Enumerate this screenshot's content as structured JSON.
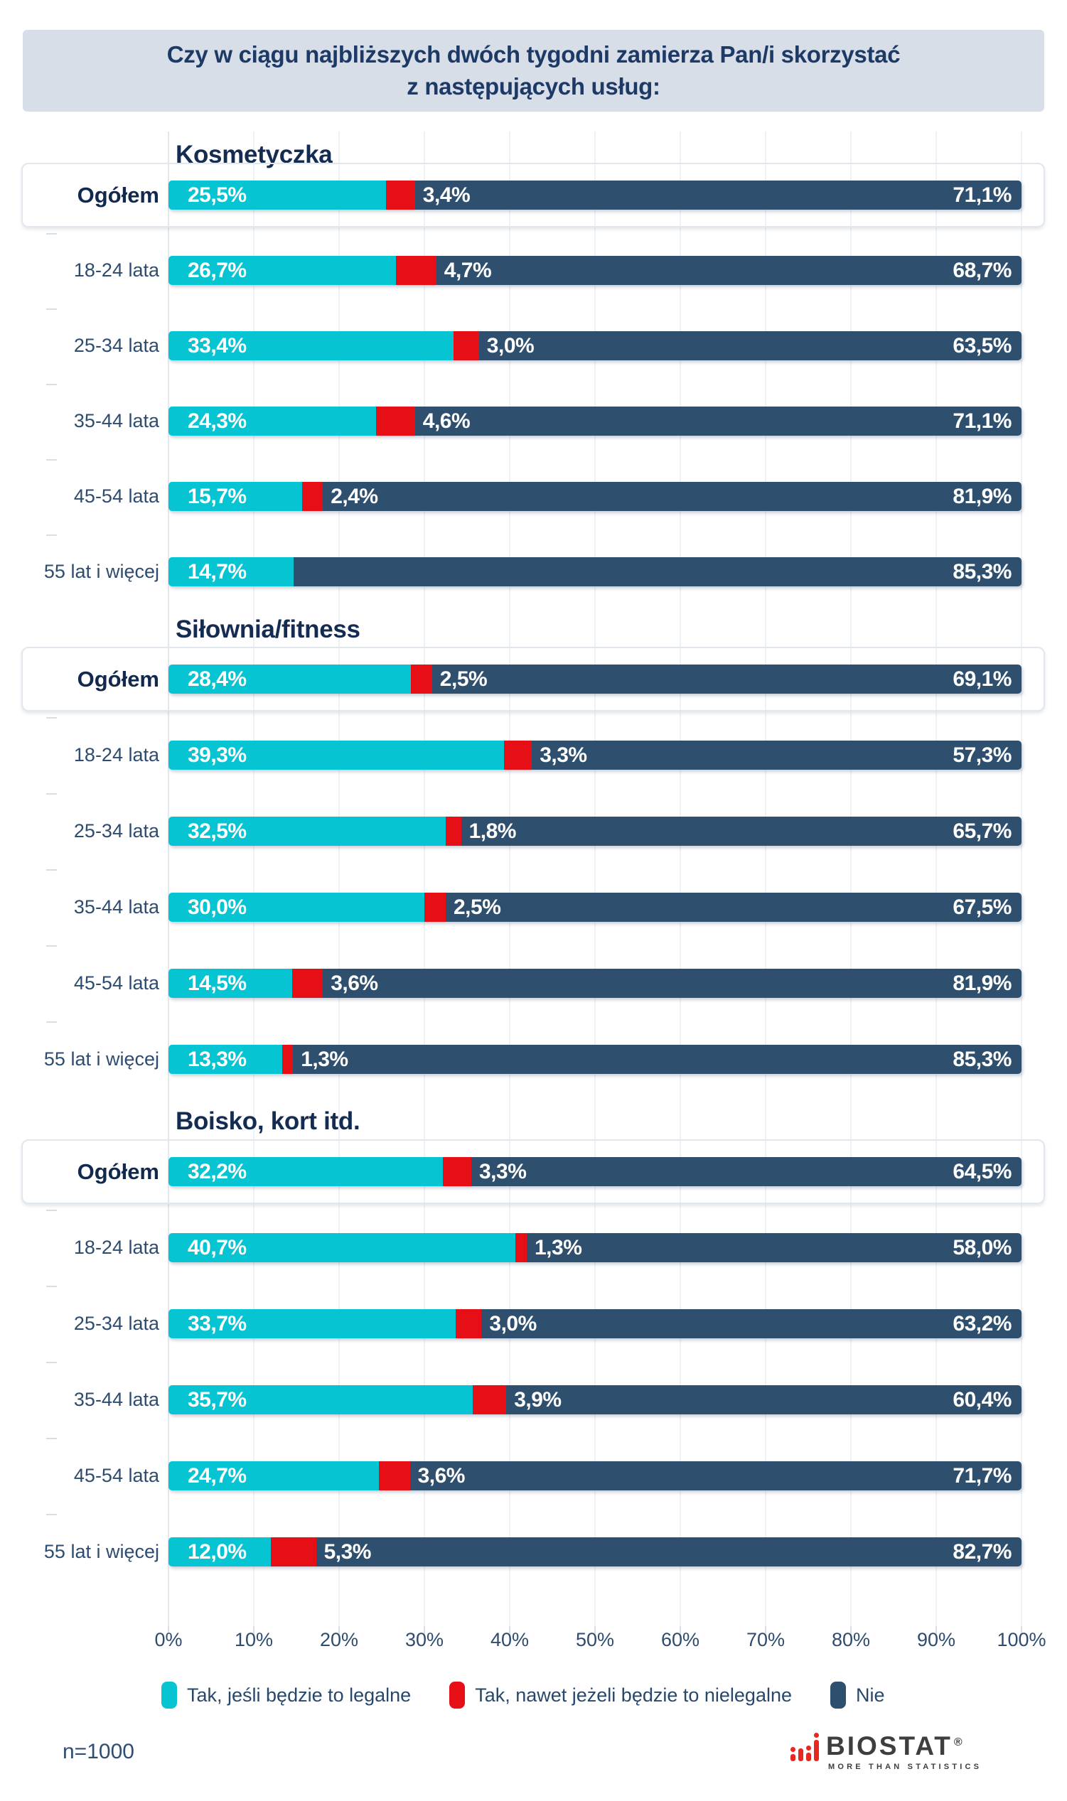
{
  "title": {
    "line1": "Czy w ciągu najbliższych dwóch tygodni zamierza Pan/i skorzystać",
    "line2": "z następujących usług:"
  },
  "colors": {
    "legal": "#07c4d2",
    "illegal": "#e60f16",
    "no": "#2e4f6e",
    "banner_bg": "#d8dee8",
    "text_navy": "#2d4c6f",
    "dark_navy": "#152c52",
    "logo_red": "#e8271e",
    "logo_gray": "#3e3e3e"
  },
  "legend": [
    {
      "key": "legal",
      "label": "Tak, jeśli będzie to legalne"
    },
    {
      "key": "illegal",
      "label": "Tak, nawet jeżeli będzie to nielegalne"
    },
    {
      "key": "no",
      "label": "Nie"
    }
  ],
  "footer": {
    "sample": "n=1000",
    "logo": {
      "name": "BIOSTAT",
      "registered": "®",
      "tagline": "MORE THAN STATISTICS"
    }
  },
  "chart_data": {
    "type": "bar",
    "stacked": true,
    "orientation": "horizontal",
    "unit": "%",
    "xlim": [
      0,
      100
    ],
    "grid": true,
    "x_ticks": [
      "0%",
      "10%",
      "20%",
      "30%",
      "40%",
      "50%",
      "60%",
      "70%",
      "80%",
      "90%",
      "100%"
    ],
    "categories": [
      "Ogółem",
      "18-24 lata",
      "25-34 lata",
      "35-44 lata",
      "45-54 lata",
      "55 lat i więcej"
    ],
    "series_names": [
      "Tak, jeśli będzie to legalne",
      "Tak, nawet jeżeli będzie to nielegalne",
      "Nie"
    ],
    "sections": [
      {
        "title": "Kosmetyczka",
        "rows": [
          {
            "label": "Ogółem",
            "legal": 25.5,
            "illegal": 3.4,
            "no": 71.1,
            "legal_text": "25,5%",
            "illegal_text": "3,4%",
            "no_text": "71,1%"
          },
          {
            "label": "18-24 lata",
            "legal": 26.7,
            "illegal": 4.7,
            "no": 68.7,
            "legal_text": "26,7%",
            "illegal_text": "4,7%",
            "no_text": "68,7%"
          },
          {
            "label": "25-34 lata",
            "legal": 33.4,
            "illegal": 3.0,
            "no": 63.5,
            "legal_text": "33,4%",
            "illegal_text": "3,0%",
            "no_text": "63,5%"
          },
          {
            "label": "35-44 lata",
            "legal": 24.3,
            "illegal": 4.6,
            "no": 71.1,
            "legal_text": "24,3%",
            "illegal_text": "4,6%",
            "no_text": "71,1%"
          },
          {
            "label": "45-54 lata",
            "legal": 15.7,
            "illegal": 2.4,
            "no": 81.9,
            "legal_text": "15,7%",
            "illegal_text": "2,4%",
            "no_text": "81,9%"
          },
          {
            "label": "55 lat i więcej",
            "legal": 14.7,
            "illegal": null,
            "no": 85.3,
            "legal_text": "14,7%",
            "illegal_text": null,
            "no_text": "85,3%"
          }
        ]
      },
      {
        "title": "Siłownia/fitness",
        "rows": [
          {
            "label": "Ogółem",
            "legal": 28.4,
            "illegal": 2.5,
            "no": 69.1,
            "legal_text": "28,4%",
            "illegal_text": "2,5%",
            "no_text": "69,1%"
          },
          {
            "label": "18-24 lata",
            "legal": 39.3,
            "illegal": 3.3,
            "no": 57.3,
            "legal_text": "39,3%",
            "illegal_text": "3,3%",
            "no_text": "57,3%"
          },
          {
            "label": "25-34 lata",
            "legal": 32.5,
            "illegal": 1.8,
            "no": 65.7,
            "legal_text": "32,5%",
            "illegal_text": "1,8%",
            "no_text": "65,7%"
          },
          {
            "label": "35-44 lata",
            "legal": 30.0,
            "illegal": 2.5,
            "no": 67.5,
            "legal_text": "30,0%",
            "illegal_text": "2,5%",
            "no_text": "67,5%"
          },
          {
            "label": "45-54 lata",
            "legal": 14.5,
            "illegal": 3.6,
            "no": 81.9,
            "legal_text": "14,5%",
            "illegal_text": "3,6%",
            "no_text": "81,9%"
          },
          {
            "label": "55 lat i więcej",
            "legal": 13.3,
            "illegal": 1.3,
            "no": 85.3,
            "legal_text": "13,3%",
            "illegal_text": "1,3%",
            "no_text": "85,3%"
          }
        ]
      },
      {
        "title": "Boisko, kort itd.",
        "rows": [
          {
            "label": "Ogółem",
            "legal": 32.2,
            "illegal": 3.3,
            "no": 64.5,
            "legal_text": "32,2%",
            "illegal_text": "3,3%",
            "no_text": "64,5%"
          },
          {
            "label": "18-24 lata",
            "legal": 40.7,
            "illegal": 1.3,
            "no": 58.0,
            "legal_text": "40,7%",
            "illegal_text": "1,3%",
            "no_text": "58,0%"
          },
          {
            "label": "25-34 lata",
            "legal": 33.7,
            "illegal": 3.0,
            "no": 63.2,
            "legal_text": "33,7%",
            "illegal_text": "3,0%",
            "no_text": "63,2%"
          },
          {
            "label": "35-44 lata",
            "legal": 35.7,
            "illegal": 3.9,
            "no": 60.4,
            "legal_text": "35,7%",
            "illegal_text": "3,9%",
            "no_text": "60,4%"
          },
          {
            "label": "45-54 lata",
            "legal": 24.7,
            "illegal": 3.6,
            "no": 71.7,
            "legal_text": "24,7%",
            "illegal_text": "3,6%",
            "no_text": "71,7%"
          },
          {
            "label": "55 lat i więcej",
            "legal": 12.0,
            "illegal": 5.3,
            "no": 82.7,
            "legal_text": "12,0%",
            "illegal_text": "5,3%",
            "no_text": "82,7%"
          }
        ]
      }
    ]
  }
}
